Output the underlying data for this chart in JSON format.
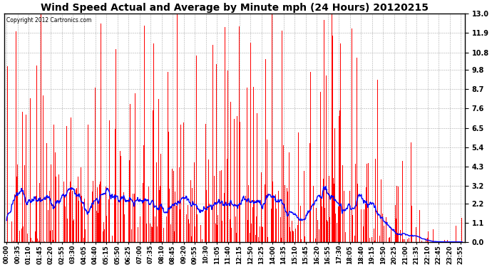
{
  "title": "Wind Speed Actual and Average by Minute mph (24 Hours) 20120215",
  "copyright_text": "Copyright 2012 Cartronics.com",
  "bar_color": "#FF0000",
  "line_color": "#0000FF",
  "background_color": "#FFFFFF",
  "grid_color": "#AAAAAA",
  "yticks": [
    0.0,
    1.1,
    2.2,
    3.2,
    4.3,
    5.4,
    6.5,
    7.6,
    8.7,
    9.8,
    10.8,
    11.9,
    13.0
  ],
  "ymax": 13.0,
  "ymin": 0.0,
  "n_minutes": 1440,
  "xtick_interval": 35,
  "title_fontsize": 10,
  "axis_fontsize": 7,
  "figsize": [
    6.9,
    3.75
  ],
  "dpi": 100
}
